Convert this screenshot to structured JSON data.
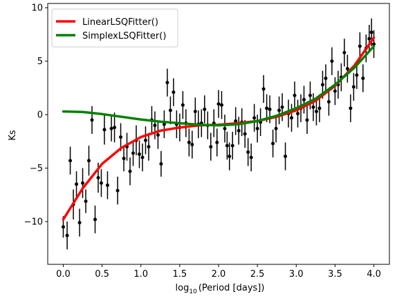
{
  "chart_data": {
    "type": "scatter",
    "xlabel_main": "log",
    "xlabel_sub": "10",
    "xlabel_rest": "(Period [days])",
    "ylabel": "Ks",
    "xlim": [
      -0.2,
      4.2
    ],
    "ylim": [
      -14,
      10.4
    ],
    "xticks": [
      0.0,
      0.5,
      1.0,
      1.5,
      2.0,
      2.5,
      3.0,
      3.5,
      4.0
    ],
    "xtick_labels": [
      "0.0",
      "0.5",
      "1.0",
      "1.5",
      "2.0",
      "2.5",
      "3.0",
      "3.5",
      "4.0"
    ],
    "yticks": [
      -10,
      -5,
      0,
      5,
      10
    ],
    "ytick_labels": [
      "−10",
      "−5",
      "0",
      "5",
      "10"
    ],
    "grid": false,
    "legend_position": "top-left",
    "colors": {
      "points": "#000000",
      "linear": "#ff0000",
      "simplex": "#008000"
    },
    "points": [
      {
        "x": 0.0,
        "y": -10.5,
        "e": 1.0
      },
      {
        "x": 0.05,
        "y": -11.3,
        "e": 1.3
      },
      {
        "x": 0.09,
        "y": -4.3,
        "e": 1.3
      },
      {
        "x": 0.13,
        "y": -8.4,
        "e": 1.4
      },
      {
        "x": 0.17,
        "y": -6.5,
        "e": 1.2
      },
      {
        "x": 0.21,
        "y": -10.1,
        "e": 1.3
      },
      {
        "x": 0.25,
        "y": -6.4,
        "e": 1.4
      },
      {
        "x": 0.29,
        "y": -8.1,
        "e": 1.1
      },
      {
        "x": 0.33,
        "y": -4.3,
        "e": 1.4
      },
      {
        "x": 0.37,
        "y": -0.5,
        "e": 1.3
      },
      {
        "x": 0.41,
        "y": -9.8,
        "e": 1.3
      },
      {
        "x": 0.45,
        "y": -5.9,
        "e": 1.4
      },
      {
        "x": 0.49,
        "y": -6.4,
        "e": 1.3
      },
      {
        "x": 0.53,
        "y": -1.4,
        "e": 1.4
      },
      {
        "x": 0.57,
        "y": -6.6,
        "e": 1.3
      },
      {
        "x": 0.62,
        "y": -1.3,
        "e": 1.2
      },
      {
        "x": 0.66,
        "y": -1.2,
        "e": 1.4
      },
      {
        "x": 0.7,
        "y": -7.1,
        "e": 1.3
      },
      {
        "x": 0.74,
        "y": -2.1,
        "e": 1.3
      },
      {
        "x": 0.78,
        "y": -4.1,
        "e": 1.2
      },
      {
        "x": 0.82,
        "y": -3.0,
        "e": 1.3
      },
      {
        "x": 0.86,
        "y": -5.3,
        "e": 1.3
      },
      {
        "x": 0.9,
        "y": -3.6,
        "e": 1.2
      },
      {
        "x": 0.94,
        "y": -2.4,
        "e": 1.4
      },
      {
        "x": 0.98,
        "y": -3.7,
        "e": 1.3
      },
      {
        "x": 1.02,
        "y": -4.0,
        "e": 1.3
      },
      {
        "x": 1.06,
        "y": -2.4,
        "e": 1.3
      },
      {
        "x": 1.1,
        "y": -3.0,
        "e": 1.3
      },
      {
        "x": 1.14,
        "y": -0.5,
        "e": 1.3
      },
      {
        "x": 1.18,
        "y": -1.0,
        "e": 1.3
      },
      {
        "x": 1.22,
        "y": -1.9,
        "e": 1.3
      },
      {
        "x": 1.26,
        "y": -4.6,
        "e": 1.2
      },
      {
        "x": 1.3,
        "y": -0.9,
        "e": 1.3
      },
      {
        "x": 1.34,
        "y": 3.0,
        "e": 1.3
      },
      {
        "x": 1.38,
        "y": 0.4,
        "e": 1.3
      },
      {
        "x": 1.42,
        "y": 2.1,
        "e": 1.3
      },
      {
        "x": 1.46,
        "y": -0.9,
        "e": 1.3
      },
      {
        "x": 1.5,
        "y": -1.2,
        "e": 1.3
      },
      {
        "x": 1.54,
        "y": 0.9,
        "e": 1.3
      },
      {
        "x": 1.58,
        "y": -0.8,
        "e": 1.3
      },
      {
        "x": 1.62,
        "y": -2.6,
        "e": 1.3
      },
      {
        "x": 1.66,
        "y": -2.8,
        "e": 1.3
      },
      {
        "x": 1.7,
        "y": 0.3,
        "e": 1.3
      },
      {
        "x": 1.74,
        "y": -0.9,
        "e": 1.3
      },
      {
        "x": 1.78,
        "y": -0.8,
        "e": 1.3
      },
      {
        "x": 1.82,
        "y": 0.5,
        "e": 1.3
      },
      {
        "x": 1.86,
        "y": -1.0,
        "e": 1.3
      },
      {
        "x": 1.9,
        "y": -3.0,
        "e": 1.3
      },
      {
        "x": 1.94,
        "y": -0.8,
        "e": 1.3
      },
      {
        "x": 1.98,
        "y": -2.6,
        "e": 1.3
      },
      {
        "x": 2.0,
        "y": 1.0,
        "e": 1.3
      },
      {
        "x": 2.04,
        "y": 0.9,
        "e": 1.3
      },
      {
        "x": 2.08,
        "y": -1.3,
        "e": 1.3
      },
      {
        "x": 2.11,
        "y": -2.9,
        "e": 1.3
      },
      {
        "x": 2.14,
        "y": -3.9,
        "e": 1.3
      },
      {
        "x": 2.18,
        "y": -2.9,
        "e": 1.3
      },
      {
        "x": 2.22,
        "y": -0.6,
        "e": 1.3
      },
      {
        "x": 2.26,
        "y": -1.5,
        "e": 1.3
      },
      {
        "x": 2.3,
        "y": -0.7,
        "e": 1.3
      },
      {
        "x": 2.34,
        "y": -1.8,
        "e": 1.3
      },
      {
        "x": 2.38,
        "y": -3.5,
        "e": 1.3
      },
      {
        "x": 2.42,
        "y": -4.0,
        "e": 1.3
      },
      {
        "x": 2.46,
        "y": -0.3,
        "e": 1.3
      },
      {
        "x": 2.5,
        "y": -1.3,
        "e": 1.3
      },
      {
        "x": 2.54,
        "y": -0.7,
        "e": 1.3
      },
      {
        "x": 2.58,
        "y": 2.4,
        "e": 1.3
      },
      {
        "x": 2.62,
        "y": 0.6,
        "e": 1.3
      },
      {
        "x": 2.66,
        "y": 0.5,
        "e": 1.3
      },
      {
        "x": 2.7,
        "y": -2.7,
        "e": 1.3
      },
      {
        "x": 2.74,
        "y": -1.3,
        "e": 1.3
      },
      {
        "x": 2.78,
        "y": 0.4,
        "e": 1.3
      },
      {
        "x": 2.82,
        "y": 0.7,
        "e": 1.3
      },
      {
        "x": 2.86,
        "y": -3.9,
        "e": 1.3
      },
      {
        "x": 2.9,
        "y": 0.1,
        "e": 1.3
      },
      {
        "x": 2.94,
        "y": -0.3,
        "e": 1.3
      },
      {
        "x": 2.98,
        "y": 1.8,
        "e": 1.3
      },
      {
        "x": 3.02,
        "y": 0.1,
        "e": 1.3
      },
      {
        "x": 3.06,
        "y": 0.6,
        "e": 1.3
      },
      {
        "x": 3.1,
        "y": 1.4,
        "e": 1.3
      },
      {
        "x": 3.14,
        "y": -0.5,
        "e": 1.3
      },
      {
        "x": 3.18,
        "y": 1.8,
        "e": 1.3
      },
      {
        "x": 3.22,
        "y": 0.7,
        "e": 1.3
      },
      {
        "x": 3.26,
        "y": 0.3,
        "e": 1.3
      },
      {
        "x": 3.3,
        "y": 0.6,
        "e": 1.3
      },
      {
        "x": 3.34,
        "y": 2.8,
        "e": 1.3
      },
      {
        "x": 3.38,
        "y": 3.4,
        "e": 1.3
      },
      {
        "x": 3.42,
        "y": 1.2,
        "e": 1.3
      },
      {
        "x": 3.46,
        "y": 5.0,
        "e": 1.3
      },
      {
        "x": 3.5,
        "y": 2.2,
        "e": 1.3
      },
      {
        "x": 3.54,
        "y": 2.8,
        "e": 1.3
      },
      {
        "x": 3.58,
        "y": 3.5,
        "e": 1.3
      },
      {
        "x": 3.62,
        "y": 5.8,
        "e": 1.3
      },
      {
        "x": 3.66,
        "y": 4.3,
        "e": 1.3
      },
      {
        "x": 3.7,
        "y": 0.6,
        "e": 1.3
      },
      {
        "x": 3.74,
        "y": 2.6,
        "e": 1.3
      },
      {
        "x": 3.78,
        "y": 3.7,
        "e": 1.3
      },
      {
        "x": 3.82,
        "y": 6.4,
        "e": 1.3
      },
      {
        "x": 3.86,
        "y": 3.4,
        "e": 1.3
      },
      {
        "x": 3.9,
        "y": 6.2,
        "e": 1.3
      },
      {
        "x": 3.94,
        "y": 7.1,
        "e": 1.3
      },
      {
        "x": 3.97,
        "y": 7.7,
        "e": 1.3
      },
      {
        "x": 4.0,
        "y": 6.6,
        "e": 1.3
      }
    ],
    "series": [
      {
        "name": "LinearLSQFitter()",
        "color": "#ff0000",
        "x": [
          0.0,
          0.25,
          0.5,
          0.75,
          1.0,
          1.25,
          1.5,
          1.75,
          2.0,
          2.25,
          2.5,
          2.75,
          3.0,
          3.25,
          3.5,
          3.75,
          4.0
        ],
        "y": [
          -9.8,
          -6.9,
          -4.6,
          -3.1,
          -2.1,
          -1.5,
          -1.2,
          -1.0,
          -0.95,
          -0.8,
          -0.6,
          -0.2,
          0.4,
          1.3,
          2.7,
          4.6,
          7.2
        ]
      },
      {
        "name": "SimplexLSQFitter()",
        "color": "#008000",
        "x": [
          0.0,
          0.25,
          0.5,
          0.75,
          1.0,
          1.25,
          1.5,
          1.75,
          2.0,
          2.25,
          2.5,
          2.75,
          3.0,
          3.25,
          3.5,
          3.75,
          4.0
        ],
        "y": [
          0.3,
          0.25,
          0.05,
          -0.2,
          -0.45,
          -0.65,
          -0.8,
          -0.95,
          -1.0,
          -0.9,
          -0.6,
          -0.1,
          0.6,
          1.5,
          2.8,
          4.4,
          6.4
        ]
      }
    ]
  }
}
